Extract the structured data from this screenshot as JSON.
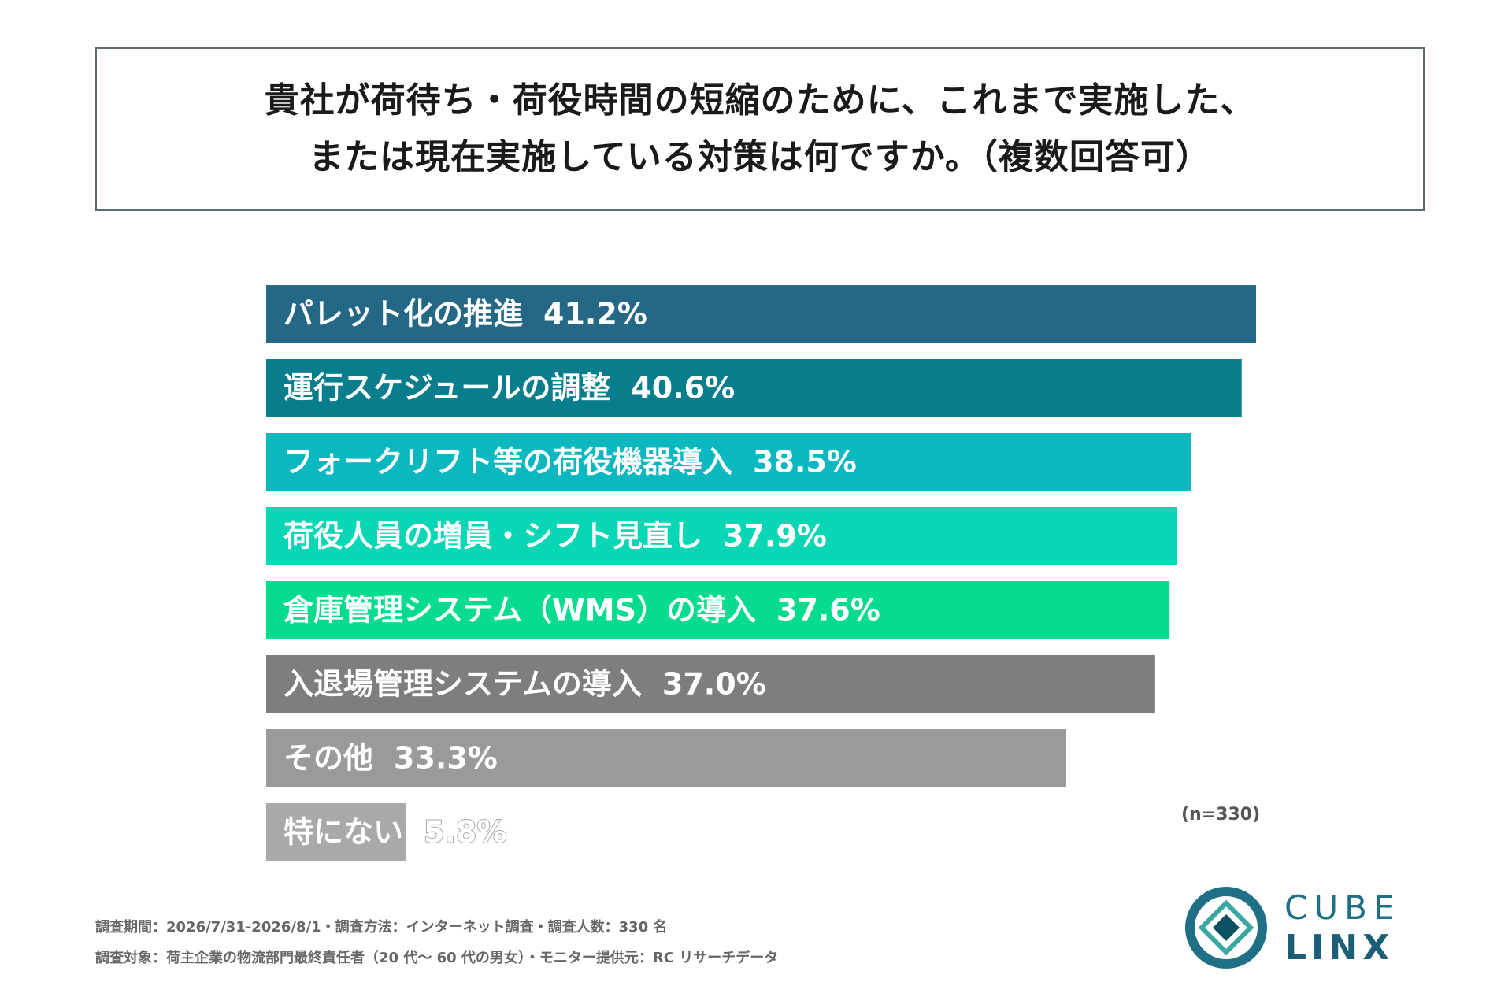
{
  "title": {
    "line1": "貴社が荷待ち・荷役時間の短縮のために、これまで実施した、",
    "line2": "または現在実施している対策は何ですか。（複数回答可）"
  },
  "chart_data": {
    "type": "bar",
    "orientation": "horizontal",
    "unit": "%",
    "categories": [
      "パレット化の推進",
      "運行スケジュールの調整",
      "フォークリフト等の荷役機器導入",
      "荷役人員の増員・シフト見直し",
      "倉庫管理システム（WMS）の導入",
      "入退場管理システムの導入",
      "その他",
      "特にない"
    ],
    "values": [
      41.2,
      40.6,
      38.5,
      37.9,
      37.6,
      37.0,
      33.3,
      5.8
    ],
    "value_labels": [
      "41.2%",
      "40.6%",
      "38.5%",
      "37.9%",
      "37.6%",
      "37.0%",
      "33.3%",
      "5.8%"
    ],
    "colors": [
      "#256886",
      "#087d8c",
      "#0bb8bf",
      "#09d6b4",
      "#07dc8e",
      "#7e7e7e",
      "#9a9a9a",
      "#a9a9a9"
    ],
    "xlim": [
      0,
      41.2
    ],
    "grid": false,
    "legend": "none"
  },
  "sample_note": "(n=330)",
  "footer": {
    "line1": "調査期間：2026/7/31-2026/8/1・調査方法：インターネット調査・調査人数：330 名",
    "line2": "調査対象：荷主企業の物流部門最終責任者（20 代～ 60 代の男女）・モニター提供元：RC リサーチデータ"
  },
  "logo": {
    "top": "CUBE",
    "bottom": "LINX",
    "colors": [
      "#1f6f86",
      "#3aa7a0",
      "#0d4f63"
    ]
  }
}
